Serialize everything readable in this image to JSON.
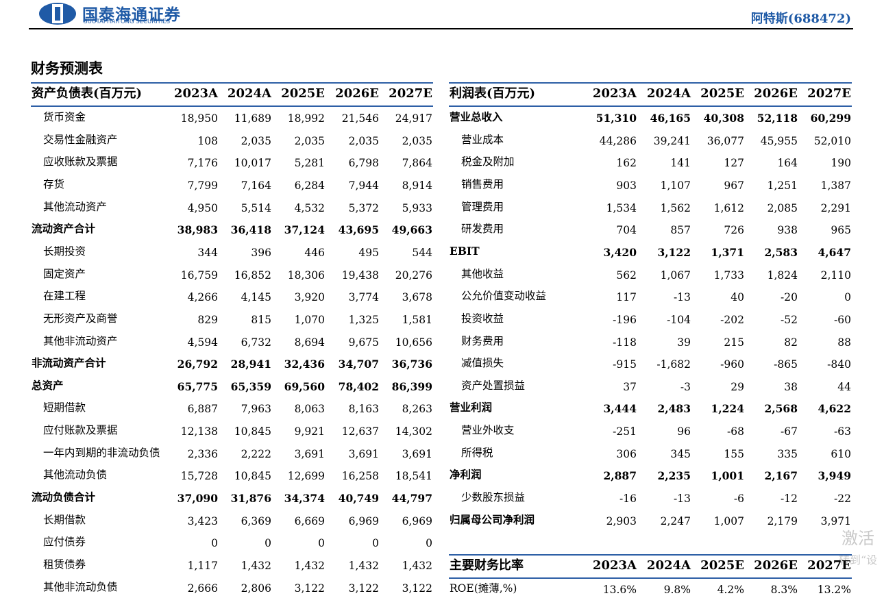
{
  "header": {
    "logo_name": "国泰海通证券",
    "logo_subtitle": "GUOTAI HAITONG SECURITIES",
    "company": "阿特斯(688472)"
  },
  "title": "财务预测表",
  "tables": [
    {
      "columns": [
        "资产负债表(百万元)",
        "2023A",
        "2024A",
        "2025E",
        "2026E",
        "2027E"
      ],
      "rows": [
        {
          "label": "货币资金",
          "values": [
            "18,950",
            "11,689",
            "18,992",
            "21,546",
            "24,917"
          ]
        },
        {
          "label": "交易性金融资产",
          "values": [
            "108",
            "2,035",
            "2,035",
            "2,035",
            "2,035"
          ]
        },
        {
          "label": "应收账款及票据",
          "values": [
            "7,176",
            "10,017",
            "5,281",
            "6,798",
            "7,864"
          ]
        },
        {
          "label": "存货",
          "values": [
            "7,799",
            "7,164",
            "6,284",
            "7,944",
            "8,914"
          ]
        },
        {
          "label": "其他流动资产",
          "values": [
            "4,950",
            "5,514",
            "4,532",
            "5,372",
            "5,933"
          ]
        },
        {
          "label": "流动资产合计",
          "values": [
            "38,983",
            "36,418",
            "37,124",
            "43,695",
            "49,663"
          ],
          "bold": true
        },
        {
          "label": "长期投资",
          "values": [
            "344",
            "396",
            "446",
            "495",
            "544"
          ]
        },
        {
          "label": "固定资产",
          "values": [
            "16,759",
            "16,852",
            "18,306",
            "19,438",
            "20,276"
          ]
        },
        {
          "label": "在建工程",
          "values": [
            "4,266",
            "4,145",
            "3,920",
            "3,774",
            "3,678"
          ]
        },
        {
          "label": "无形资产及商誉",
          "values": [
            "829",
            "815",
            "1,070",
            "1,325",
            "1,581"
          ]
        },
        {
          "label": "其他非流动资产",
          "values": [
            "4,594",
            "6,732",
            "8,694",
            "9,675",
            "10,656"
          ]
        },
        {
          "label": "非流动资产合计",
          "values": [
            "26,792",
            "28,941",
            "32,436",
            "34,707",
            "36,736"
          ],
          "bold": true
        },
        {
          "label": "总资产",
          "values": [
            "65,775",
            "65,359",
            "69,560",
            "78,402",
            "86,399"
          ],
          "bold": true
        },
        {
          "label": "短期借款",
          "values": [
            "6,887",
            "7,963",
            "8,063",
            "8,163",
            "8,263"
          ]
        },
        {
          "label": "应付账款及票据",
          "values": [
            "12,138",
            "10,845",
            "9,921",
            "12,637",
            "14,302"
          ]
        },
        {
          "label": "一年内到期的非流动负债",
          "values": [
            "2,336",
            "2,222",
            "3,691",
            "3,691",
            "3,691"
          ]
        },
        {
          "label": "其他流动负债",
          "values": [
            "15,728",
            "10,845",
            "12,699",
            "16,258",
            "18,541"
          ]
        },
        {
          "label": "流动负债合计",
          "values": [
            "37,090",
            "31,876",
            "34,374",
            "40,749",
            "44,797"
          ],
          "bold": true
        },
        {
          "label": "长期借款",
          "values": [
            "3,423",
            "6,369",
            "6,669",
            "6,969",
            "6,969"
          ]
        },
        {
          "label": "应付债券",
          "values": [
            "0",
            "0",
            "0",
            "0",
            "0"
          ]
        },
        {
          "label": "租赁债券",
          "values": [
            "1,117",
            "1,432",
            "1,432",
            "1,432",
            "1,432"
          ]
        },
        {
          "label": "其他非流动负债",
          "values": [
            "2,666",
            "2,806",
            "3,122",
            "3,122",
            "3,122"
          ]
        }
      ]
    },
    {
      "columns": [
        "利润表(百万元)",
        "2023A",
        "2024A",
        "2025E",
        "2026E",
        "2027E"
      ],
      "rows": [
        {
          "label": "营业总收入",
          "values": [
            "51,310",
            "46,165",
            "40,308",
            "52,118",
            "60,299"
          ],
          "bold": true
        },
        {
          "label": "营业成本",
          "values": [
            "44,286",
            "39,241",
            "36,077",
            "45,955",
            "52,010"
          ]
        },
        {
          "label": "税金及附加",
          "values": [
            "162",
            "141",
            "127",
            "164",
            "190"
          ]
        },
        {
          "label": "销售费用",
          "values": [
            "903",
            "1,107",
            "967",
            "1,251",
            "1,387"
          ]
        },
        {
          "label": "管理费用",
          "values": [
            "1,534",
            "1,562",
            "1,612",
            "2,085",
            "2,291"
          ]
        },
        {
          "label": "研发费用",
          "values": [
            "704",
            "857",
            "726",
            "938",
            "965"
          ]
        },
        {
          "label": "EBIT",
          "values": [
            "3,420",
            "3,122",
            "1,371",
            "2,583",
            "4,647"
          ],
          "bold": true
        },
        {
          "label": "其他收益",
          "values": [
            "562",
            "1,067",
            "1,733",
            "1,824",
            "2,110"
          ]
        },
        {
          "label": "公允价值变动收益",
          "values": [
            "117",
            "-13",
            "40",
            "-20",
            "0"
          ]
        },
        {
          "label": "投资收益",
          "values": [
            "-196",
            "-104",
            "-202",
            "-52",
            "-60"
          ]
        },
        {
          "label": "财务费用",
          "values": [
            "-118",
            "39",
            "215",
            "82",
            "88"
          ]
        },
        {
          "label": "减值损失",
          "values": [
            "-915",
            "-1,682",
            "-960",
            "-865",
            "-840"
          ]
        },
        {
          "label": "资产处置损益",
          "values": [
            "37",
            "-3",
            "29",
            "38",
            "44"
          ]
        },
        {
          "label": "营业利润",
          "values": [
            "3,444",
            "2,483",
            "1,224",
            "2,568",
            "4,622"
          ],
          "bold": true
        },
        {
          "label": "营业外收支",
          "values": [
            "-251",
            "96",
            "-68",
            "-67",
            "-63"
          ]
        },
        {
          "label": "所得税",
          "values": [
            "306",
            "345",
            "155",
            "335",
            "610"
          ]
        },
        {
          "label": "净利润",
          "values": [
            "2,887",
            "2,235",
            "1,001",
            "2,167",
            "3,949"
          ],
          "bold": true
        },
        {
          "label": "少数股东损益",
          "values": [
            "-16",
            "-13",
            "-6",
            "-12",
            "-22"
          ]
        },
        {
          "label": "归属母公司净利润",
          "values": [
            "2,903",
            "2,247",
            "1,007",
            "2,179",
            "3,971"
          ],
          "bold": "label"
        }
      ]
    },
    {
      "columns": [
        "主要财务比率",
        "2023A",
        "2024A",
        "2025E",
        "2026E",
        "2027E"
      ],
      "rows": [
        {
          "label": "ROE(摊薄,%)",
          "values": [
            "13.6%",
            "9.8%",
            "4.2%",
            "8.3%",
            "13.2%"
          ],
          "indent": false
        }
      ]
    }
  ],
  "watermark": [
    "激活",
    "转到“设"
  ]
}
